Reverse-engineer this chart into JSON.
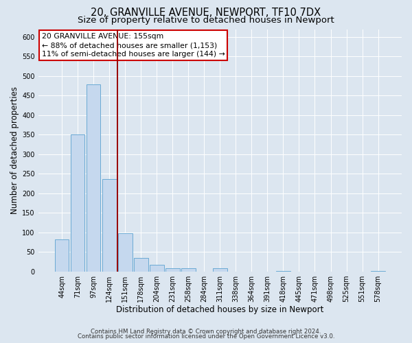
{
  "title1": "20, GRANVILLE AVENUE, NEWPORT, TF10 7DX",
  "title2": "Size of property relative to detached houses in Newport",
  "xlabel": "Distribution of detached houses by size in Newport",
  "ylabel": "Number of detached properties",
  "bin_labels": [
    "44sqm",
    "71sqm",
    "97sqm",
    "124sqm",
    "151sqm",
    "178sqm",
    "204sqm",
    "231sqm",
    "258sqm",
    "284sqm",
    "311sqm",
    "338sqm",
    "364sqm",
    "391sqm",
    "418sqm",
    "445sqm",
    "471sqm",
    "498sqm",
    "525sqm",
    "551sqm",
    "578sqm"
  ],
  "bar_values": [
    83,
    350,
    478,
    236,
    98,
    35,
    18,
    8,
    8,
    0,
    8,
    0,
    0,
    0,
    2,
    0,
    0,
    0,
    0,
    0,
    2
  ],
  "bar_color": "#c5d8ee",
  "bar_edgecolor": "#6aaad4",
  "bar_linewidth": 0.7,
  "vline_color": "#990000",
  "vline_linewidth": 1.4,
  "vline_position": 4.5,
  "annotation_title": "20 GRANVILLE AVENUE: 155sqm",
  "annotation_line1": "← 88% of detached houses are smaller (1,153)",
  "annotation_line2": "11% of semi-detached houses are larger (144) →",
  "annotation_box_edgecolor": "#cc0000",
  "annotation_box_facecolor": "#ffffff",
  "ylim": [
    0,
    620
  ],
  "yticks": [
    0,
    50,
    100,
    150,
    200,
    250,
    300,
    350,
    400,
    450,
    500,
    550,
    600
  ],
  "footer1": "Contains HM Land Registry data © Crown copyright and database right 2024.",
  "footer2": "Contains public sector information licensed under the Open Government Licence v3.0.",
  "bg_color": "#dce6f0",
  "plot_bg_color": "#dce6f0",
  "grid_color": "#ffffff",
  "title1_fontsize": 10.5,
  "title2_fontsize": 9.5,
  "axis_label_fontsize": 8.5,
  "tick_fontsize": 7,
  "annotation_fontsize": 7.8,
  "footer_fontsize": 6.2
}
